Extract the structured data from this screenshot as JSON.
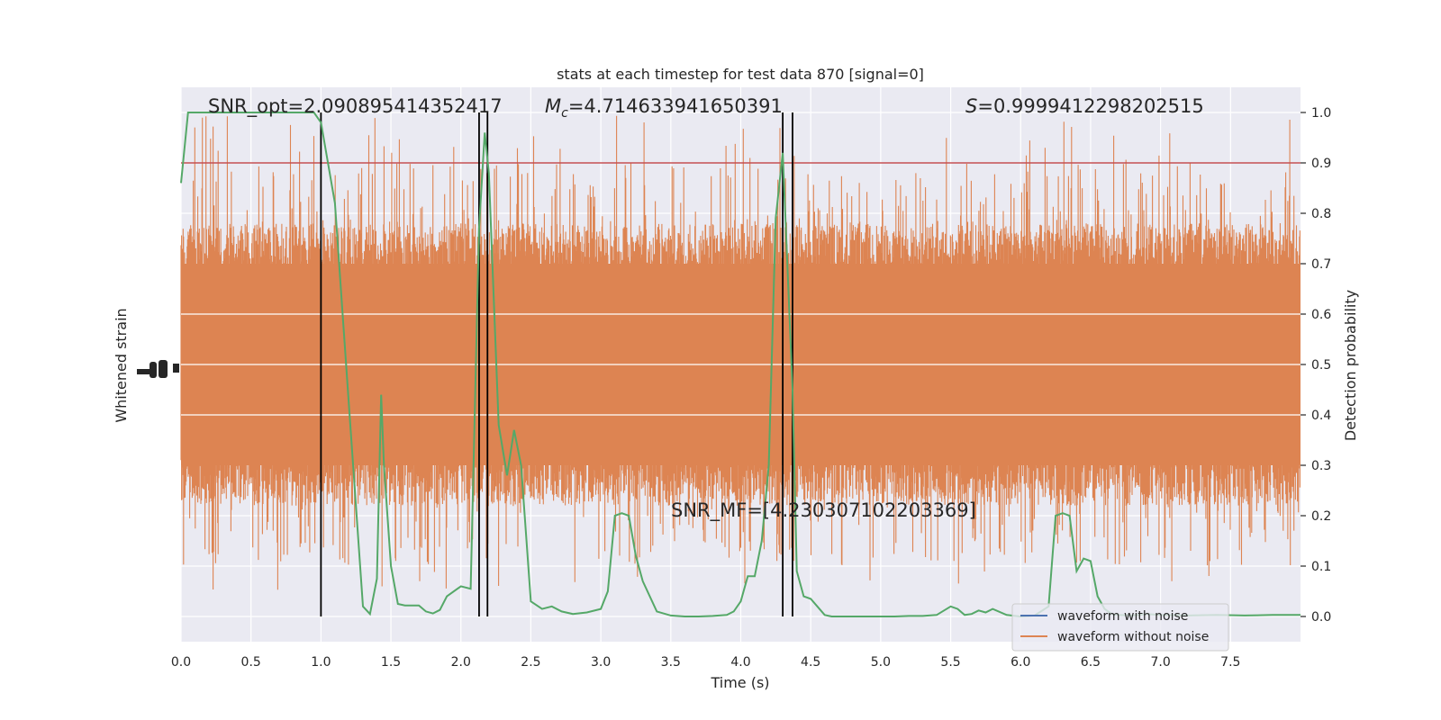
{
  "chart_data": {
    "type": "line",
    "title": "stats at each timestep for test data 870 [signal=0]",
    "xlabel": "Time (s)",
    "ylabel_left": "Whitened strain",
    "ylabel_right": "Detection probability",
    "xlim": [
      0,
      8
    ],
    "ylim_right": [
      -0.05,
      1.05
    ],
    "x_ticks": [
      "0.0",
      "0.5",
      "1.0",
      "1.5",
      "2.0",
      "2.5",
      "3.0",
      "3.5",
      "4.0",
      "4.5",
      "5.0",
      "5.5",
      "6.0",
      "6.5",
      "7.0",
      "7.5"
    ],
    "y_ticks_right": [
      "0.0",
      "0.1",
      "0.2",
      "0.3",
      "0.4",
      "0.5",
      "0.6",
      "0.7",
      "0.8",
      "0.9",
      "1.0"
    ],
    "grid": true,
    "legend_position": "bottom-right",
    "annotations": {
      "snr_opt": "SNR_opt=2.090895414352417",
      "mc_symbol": "M",
      "mc_sub": "c",
      "mc_value": "=4.714633941650391",
      "s_symbol": "S",
      "s_value": "=0.9999412298202515",
      "snr_mf": "SNR_MF=[4.230307102203369]"
    },
    "threshold": {
      "value": 0.9,
      "color": "#c44e52"
    },
    "vertical_markers": [
      1.0,
      2.13,
      2.19,
      4.3,
      4.37
    ],
    "series": [
      {
        "name": "waveform with noise",
        "color": "#4c72b0"
      },
      {
        "name": "waveform without noise",
        "color": "#dd8452",
        "noise_band": [
          0.3,
          0.7
        ]
      },
      {
        "color": "#55a868",
        "x": [
          0.0,
          0.05,
          0.1,
          0.2,
          0.3,
          0.5,
          0.7,
          0.8,
          0.95,
          1.0,
          1.1,
          1.2,
          1.3,
          1.35,
          1.4,
          1.43,
          1.45,
          1.5,
          1.55,
          1.6,
          1.7,
          1.75,
          1.8,
          1.85,
          1.9,
          2.0,
          2.07,
          2.13,
          2.17,
          2.2,
          2.27,
          2.33,
          2.38,
          2.43,
          2.5,
          2.58,
          2.65,
          2.72,
          2.8,
          2.9,
          3.0,
          3.05,
          3.1,
          3.15,
          3.2,
          3.25,
          3.3,
          3.4,
          3.5,
          3.6,
          3.7,
          3.8,
          3.9,
          3.95,
          4.0,
          4.05,
          4.1,
          4.15,
          4.2,
          4.25,
          4.3,
          4.37,
          4.4,
          4.45,
          4.5,
          4.6,
          4.65,
          4.7,
          4.8,
          4.9,
          5.0,
          5.1,
          5.2,
          5.3,
          5.4,
          5.5,
          5.55,
          5.6,
          5.65,
          5.7,
          5.75,
          5.8,
          5.9,
          6.0,
          6.1,
          6.2,
          6.25,
          6.3,
          6.35,
          6.4,
          6.45,
          6.5,
          6.55,
          6.6,
          6.65,
          6.7,
          6.8,
          6.9,
          7.0,
          7.2,
          7.4,
          7.6,
          7.8,
          8.0
        ],
        "y": [
          0.86,
          1.0,
          1.0,
          1.0,
          1.0,
          1.0,
          1.0,
          1.0,
          1.0,
          0.98,
          0.82,
          0.42,
          0.02,
          0.005,
          0.075,
          0.44,
          0.3,
          0.1,
          0.025,
          0.022,
          0.022,
          0.01,
          0.006,
          0.013,
          0.04,
          0.06,
          0.055,
          0.77,
          0.96,
          0.88,
          0.38,
          0.28,
          0.37,
          0.3,
          0.03,
          0.015,
          0.02,
          0.01,
          0.005,
          0.008,
          0.015,
          0.05,
          0.2,
          0.205,
          0.2,
          0.12,
          0.07,
          0.01,
          0.002,
          0.0,
          0.0,
          0.001,
          0.003,
          0.01,
          0.03,
          0.08,
          0.08,
          0.15,
          0.3,
          0.79,
          0.92,
          0.45,
          0.09,
          0.04,
          0.035,
          0.003,
          0.0,
          0.0,
          0.0,
          0.0,
          0.0,
          0.0,
          0.001,
          0.001,
          0.003,
          0.02,
          0.015,
          0.003,
          0.005,
          0.012,
          0.008,
          0.015,
          0.003,
          0.0,
          0.002,
          0.02,
          0.2,
          0.205,
          0.2,
          0.09,
          0.115,
          0.11,
          0.04,
          0.015,
          0.005,
          0.003,
          0.002,
          0.005,
          0.003,
          0.002,
          0.003,
          0.002,
          0.003,
          0.003
        ]
      }
    ]
  }
}
